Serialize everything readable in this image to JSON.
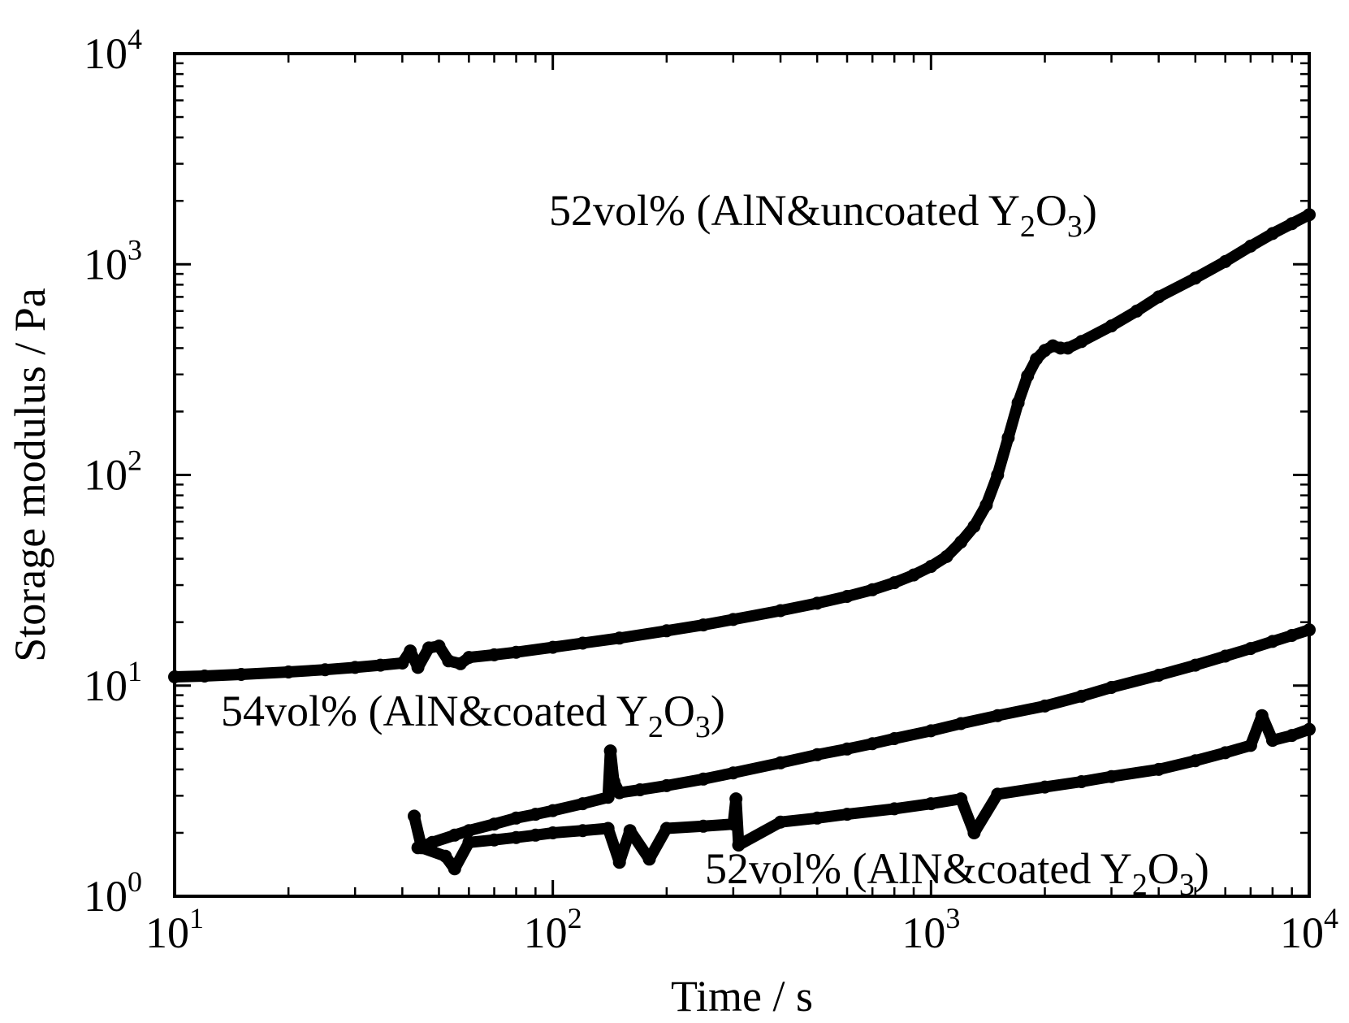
{
  "chart_data": {
    "type": "scatter",
    "title": "",
    "xlabel": "Time / s",
    "ylabel": "Storage modulus / Pa",
    "x_scale": "log",
    "y_scale": "log",
    "xlim": [
      10,
      10000
    ],
    "ylim": [
      1,
      10000
    ],
    "x_ticks": [
      {
        "value": 10,
        "base": "10",
        "exp": "1"
      },
      {
        "value": 100,
        "base": "10",
        "exp": "2"
      },
      {
        "value": 1000,
        "base": "10",
        "exp": "3"
      },
      {
        "value": 10000,
        "base": "10",
        "exp": "4"
      }
    ],
    "y_ticks": [
      {
        "value": 1,
        "base": "10",
        "exp": "0"
      },
      {
        "value": 10,
        "base": "10",
        "exp": "1"
      },
      {
        "value": 100,
        "base": "10",
        "exp": "2"
      },
      {
        "value": 1000,
        "base": "10",
        "exp": "3"
      },
      {
        "value": 10000,
        "base": "10",
        "exp": "4"
      }
    ],
    "grid": false,
    "legend": "none",
    "marker_color": "#000000",
    "series": [
      {
        "label_parts": {
          "pre": "52vol% (AlN&uncoated Y",
          "sub1": "2",
          "mid": "O",
          "sub2": "3",
          "post": ")"
        },
        "points": [
          [
            10,
            11.0
          ],
          [
            12,
            11.1
          ],
          [
            15,
            11.3
          ],
          [
            20,
            11.6
          ],
          [
            25,
            11.9
          ],
          [
            30,
            12.2
          ],
          [
            35,
            12.5
          ],
          [
            40,
            12.8
          ],
          [
            42,
            14.6
          ],
          [
            44,
            12.2
          ],
          [
            47,
            15.1
          ],
          [
            50,
            15.4
          ],
          [
            53,
            13.1
          ],
          [
            57,
            12.7
          ],
          [
            60,
            13.6
          ],
          [
            70,
            14.0
          ],
          [
            80,
            14.4
          ],
          [
            100,
            15.2
          ],
          [
            120,
            15.9
          ],
          [
            150,
            16.8
          ],
          [
            200,
            18.2
          ],
          [
            250,
            19.4
          ],
          [
            300,
            20.6
          ],
          [
            400,
            22.7
          ],
          [
            500,
            24.6
          ],
          [
            600,
            26.5
          ],
          [
            700,
            28.5
          ],
          [
            800,
            30.8
          ],
          [
            900,
            33.5
          ],
          [
            1000,
            36.8
          ],
          [
            1100,
            41
          ],
          [
            1200,
            48
          ],
          [
            1300,
            57
          ],
          [
            1400,
            72
          ],
          [
            1500,
            100
          ],
          [
            1600,
            150
          ],
          [
            1700,
            220
          ],
          [
            1800,
            295
          ],
          [
            1900,
            355
          ],
          [
            2000,
            390
          ],
          [
            2100,
            410
          ],
          [
            2200,
            400
          ],
          [
            2300,
            400
          ],
          [
            2500,
            430
          ],
          [
            3000,
            510
          ],
          [
            3500,
            600
          ],
          [
            4000,
            700
          ],
          [
            5000,
            860
          ],
          [
            6000,
            1030
          ],
          [
            7000,
            1220
          ],
          [
            8000,
            1400
          ],
          [
            9000,
            1560
          ],
          [
            10000,
            1720
          ]
        ]
      },
      {
        "label_parts": {
          "pre": "54vol% (AlN&coated Y",
          "sub1": "2",
          "mid": "O",
          "sub2": "3",
          "post": ")"
        },
        "points": [
          [
            44,
            1.7
          ],
          [
            48,
            1.8
          ],
          [
            55,
            1.95
          ],
          [
            60,
            2.05
          ],
          [
            70,
            2.2
          ],
          [
            80,
            2.35
          ],
          [
            90,
            2.45
          ],
          [
            100,
            2.55
          ],
          [
            120,
            2.75
          ],
          [
            140,
            2.95
          ],
          [
            142,
            4.9
          ],
          [
            145,
            3.5
          ],
          [
            150,
            3.1
          ],
          [
            170,
            3.2
          ],
          [
            200,
            3.35
          ],
          [
            250,
            3.6
          ],
          [
            300,
            3.85
          ],
          [
            400,
            4.3
          ],
          [
            500,
            4.7
          ],
          [
            600,
            5.0
          ],
          [
            700,
            5.3
          ],
          [
            800,
            5.6
          ],
          [
            1000,
            6.1
          ],
          [
            1200,
            6.6
          ],
          [
            1500,
            7.2
          ],
          [
            2000,
            8.0
          ],
          [
            2500,
            8.9
          ],
          [
            3000,
            9.8
          ],
          [
            4000,
            11.2
          ],
          [
            5000,
            12.5
          ],
          [
            6000,
            13.8
          ],
          [
            7000,
            15.0
          ],
          [
            8000,
            16.2
          ],
          [
            9000,
            17.3
          ],
          [
            10000,
            18.4
          ]
        ]
      },
      {
        "label_parts": {
          "pre": "52vol% (AlN&coated Y",
          "sub1": "2",
          "mid": "O",
          "sub2": "3",
          "post": ")"
        },
        "points": [
          [
            43,
            2.4
          ],
          [
            45,
            1.7
          ],
          [
            52,
            1.55
          ],
          [
            55,
            1.35
          ],
          [
            60,
            1.8
          ],
          [
            70,
            1.85
          ],
          [
            80,
            1.9
          ],
          [
            90,
            1.95
          ],
          [
            100,
            2.0
          ],
          [
            120,
            2.05
          ],
          [
            140,
            2.1
          ],
          [
            150,
            1.45
          ],
          [
            160,
            2.05
          ],
          [
            180,
            1.5
          ],
          [
            200,
            2.1
          ],
          [
            250,
            2.15
          ],
          [
            300,
            2.2
          ],
          [
            305,
            2.9
          ],
          [
            310,
            1.75
          ],
          [
            400,
            2.25
          ],
          [
            500,
            2.35
          ],
          [
            600,
            2.45
          ],
          [
            800,
            2.6
          ],
          [
            1000,
            2.75
          ],
          [
            1200,
            2.9
          ],
          [
            1300,
            2.0
          ],
          [
            1500,
            3.05
          ],
          [
            2000,
            3.3
          ],
          [
            2500,
            3.5
          ],
          [
            3000,
            3.7
          ],
          [
            4000,
            4.0
          ],
          [
            5000,
            4.4
          ],
          [
            6000,
            4.8
          ],
          [
            7000,
            5.2
          ],
          [
            7500,
            7.2
          ],
          [
            8000,
            5.5
          ],
          [
            9000,
            5.8
          ],
          [
            10000,
            6.2
          ]
        ]
      }
    ]
  }
}
